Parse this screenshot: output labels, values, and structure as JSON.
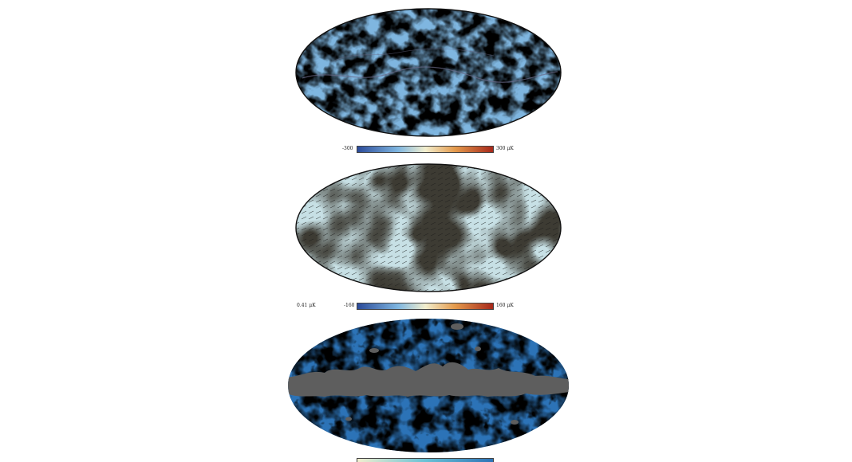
{
  "figure": {
    "panels": [
      {
        "name": "temperature-map",
        "palette": "diverging blue-white-red",
        "colorbar": {
          "min_label": "-300",
          "max_label": "300 μK"
        }
      },
      {
        "name": "polarization-map",
        "palette": "diverging blue-white-red",
        "overlay": "headless polarization vectors",
        "scale_label": "0.41 μK",
        "colorbar": {
          "min_label": "-160",
          "max_label": "160 μK"
        }
      },
      {
        "name": "lensing-map",
        "palette": "blue-teal-cream",
        "mask": "galactic plane (gray)"
      }
    ],
    "colors": {
      "deep_blue": "#2b4b9a",
      "light_blue": "#8ec5e4",
      "cream": "#f2efcf",
      "orange": "#e49a4c",
      "deep_red": "#a7281a",
      "mask_gray": "#5e5e5e",
      "lens_blue": "#2c73b7",
      "lens_teal": "#69c2d6"
    }
  }
}
